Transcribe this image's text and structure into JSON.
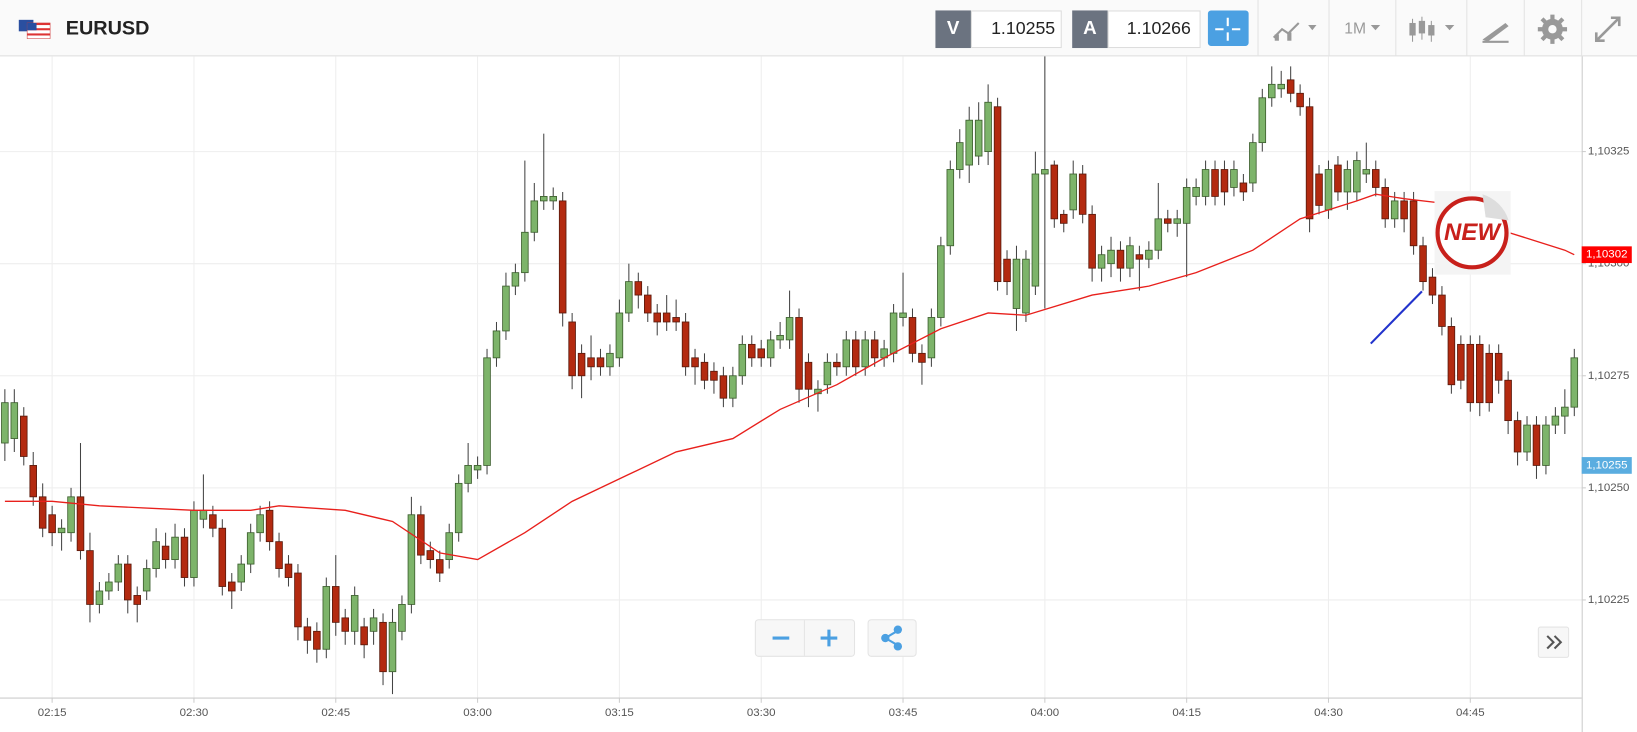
{
  "toolbar": {
    "symbol": "EURUSD",
    "bid_label": "V",
    "bid": "1.10255",
    "ask_label": "A",
    "ask": "1.10266",
    "timeframe": "1M"
  },
  "sticker": {
    "label": "NEW"
  },
  "chart_data": {
    "type": "candlestick",
    "up_color": "#7db46a",
    "down_color": "#b32a10",
    "grid": true,
    "x": [
      "02:10",
      "02:11",
      "02:12",
      "02:13",
      "02:14",
      "02:15",
      "02:16",
      "02:17",
      "02:18",
      "02:19",
      "02:20",
      "02:21",
      "02:22",
      "02:23",
      "02:24",
      "02:25",
      "02:26",
      "02:27",
      "02:28",
      "02:29",
      "02:30",
      "02:31",
      "02:32",
      "02:33",
      "02:34",
      "02:35",
      "02:36",
      "02:37",
      "02:38",
      "02:39",
      "02:40",
      "02:41",
      "02:42",
      "02:43",
      "02:44",
      "02:45",
      "02:46",
      "02:47",
      "02:48",
      "02:49",
      "02:50",
      "02:51",
      "02:52",
      "02:53",
      "02:54",
      "02:55",
      "02:56",
      "02:57",
      "02:58",
      "02:59",
      "03:00",
      "03:01",
      "03:02",
      "03:03",
      "03:04",
      "03:05",
      "03:06",
      "03:07",
      "03:08",
      "03:09",
      "03:10",
      "03:11",
      "03:12",
      "03:13",
      "03:14",
      "03:15",
      "03:16",
      "03:17",
      "03:18",
      "03:19",
      "03:20",
      "03:21",
      "03:22",
      "03:23",
      "03:24",
      "03:25",
      "03:26",
      "03:27",
      "03:28",
      "03:29",
      "03:30",
      "03:31",
      "03:32",
      "03:33",
      "03:34",
      "03:35",
      "03:36",
      "03:37",
      "03:38",
      "03:39",
      "03:40",
      "03:41",
      "03:42",
      "03:43",
      "03:44",
      "03:45",
      "03:46",
      "03:47",
      "03:48",
      "03:49",
      "03:50",
      "03:51",
      "03:52",
      "03:53",
      "03:54",
      "03:55",
      "03:56",
      "03:57",
      "03:58",
      "03:59",
      "04:00",
      "04:01",
      "04:02",
      "04:03",
      "04:04",
      "04:05",
      "04:06",
      "04:07",
      "04:08",
      "04:09",
      "04:10",
      "04:11",
      "04:12",
      "04:13",
      "04:14",
      "04:15",
      "04:16",
      "04:17",
      "04:18",
      "04:19",
      "04:20",
      "04:21",
      "04:22",
      "04:23",
      "04:24",
      "04:25",
      "04:26",
      "04:27",
      "04:28",
      "04:29",
      "04:30",
      "04:31",
      "04:32",
      "04:33",
      "04:34",
      "04:35",
      "04:36",
      "04:37",
      "04:38",
      "04:39",
      "04:40",
      "04:41",
      "04:42",
      "04:43",
      "04:44",
      "04:45",
      "04:46",
      "04:47",
      "04:48",
      "04:49",
      "04:50",
      "04:51",
      "04:52",
      "04:53",
      "04:54",
      "04:55",
      "04:56"
    ],
    "open": [
      1.1026,
      1.10261,
      1.10266,
      1.10255,
      1.10248,
      1.10244,
      1.1024,
      1.1024,
      1.10248,
      1.10236,
      1.10224,
      1.10227,
      1.10229,
      1.10233,
      1.10226,
      1.10227,
      1.10232,
      1.10237,
      1.10234,
      1.10239,
      1.1023,
      1.10243,
      1.10244,
      1.10241,
      1.10229,
      1.10229,
      1.10233,
      1.1024,
      1.10245,
      1.10238,
      1.10233,
      1.10231,
      1.10219,
      1.10218,
      1.10214,
      1.10228,
      1.10221,
      1.10218,
      1.10219,
      1.10218,
      1.1022,
      1.10209,
      1.10218,
      1.10224,
      1.10244,
      1.10236,
      1.10234,
      1.10234,
      1.1024,
      1.10251,
      1.10254,
      1.10255,
      1.10279,
      1.10285,
      1.10295,
      1.10298,
      1.10307,
      1.10314,
      1.10314,
      1.10314,
      1.10287,
      1.1028,
      1.10279,
      1.10279,
      1.10277,
      1.10279,
      1.10289,
      1.10296,
      1.10293,
      1.10289,
      1.10289,
      1.10288,
      1.10287,
      1.10279,
      1.10278,
      1.10276,
      1.10275,
      1.1027,
      1.10275,
      1.10282,
      1.10281,
      1.10279,
      1.10283,
      1.10283,
      1.10288,
      1.10278,
      1.10271,
      1.10273,
      1.10278,
      1.10277,
      1.10283,
      1.10277,
      1.10283,
      1.10279,
      1.1028,
      1.10288,
      1.10288,
      1.1028,
      1.10279,
      1.10288,
      1.10304,
      1.10321,
      1.10322,
      1.10324,
      1.10325,
      1.10335,
      1.10301,
      1.1029,
      1.10289,
      1.10295,
      1.1032,
      1.10322,
      1.10311,
      1.10312,
      1.1032,
      1.10311,
      1.10299,
      1.103,
      1.10303,
      1.10299,
      1.10302,
      1.10301,
      1.10303,
      1.1031,
      1.10309,
      1.10309,
      1.10315,
      1.10315,
      1.10321,
      1.10321,
      1.10317,
      1.10318,
      1.10318,
      1.10327,
      1.10337,
      1.10339,
      1.10341,
      1.10338,
      1.10335,
      1.1032,
      1.10312,
      1.10322,
      1.10316,
      1.10316,
      1.1032,
      1.10321,
      1.10317,
      1.1031,
      1.10314,
      1.10314,
      1.10304,
      1.10297,
      1.10293,
      1.10286,
      1.10282,
      1.10282,
      1.10282,
      1.1028,
      1.1028,
      1.10274,
      1.10265,
      1.10258,
      1.10264,
      1.10255,
      1.10264,
      1.10266,
      1.10268
    ],
    "high": [
      1.10272,
      1.10272,
      1.10268,
      1.10258,
      1.10251,
      1.10246,
      1.10243,
      1.1025,
      1.1026,
      1.1024,
      1.10229,
      1.10231,
      1.10235,
      1.10235,
      1.10228,
      1.10234,
      1.10241,
      1.1024,
      1.10242,
      1.10241,
      1.10247,
      1.10253,
      1.10246,
      1.10243,
      1.10231,
      1.10235,
      1.10242,
      1.10246,
      1.10247,
      1.1024,
      1.10235,
      1.10233,
      1.10221,
      1.1022,
      1.1023,
      1.10235,
      1.10223,
      1.10228,
      1.10221,
      1.10223,
      1.10222,
      1.10223,
      1.10226,
      1.10248,
      1.10246,
      1.10238,
      1.10236,
      1.10242,
      1.10253,
      1.1026,
      1.10257,
      1.10281,
      1.10287,
      1.10298,
      1.103,
      1.10323,
      1.10318,
      1.10329,
      1.10317,
      1.10316,
      1.10289,
      1.10282,
      1.10284,
      1.10281,
      1.10282,
      1.10292,
      1.103,
      1.10298,
      1.10295,
      1.10291,
      1.10293,
      1.10292,
      1.10289,
      1.10281,
      1.1028,
      1.10278,
      1.10277,
      1.10277,
      1.10284,
      1.10284,
      1.10283,
      1.10285,
      1.10287,
      1.10294,
      1.1029,
      1.1028,
      1.10274,
      1.1028,
      1.1028,
      1.10285,
      1.10285,
      1.10285,
      1.10285,
      1.10283,
      1.10291,
      1.10298,
      1.1029,
      1.10282,
      1.1029,
      1.10306,
      1.10323,
      1.1033,
      1.10335,
      1.10336,
      1.1034,
      1.10337,
      1.10303,
      1.10304,
      1.10303,
      1.10325,
      1.10348,
      1.10323,
      1.10312,
      1.10323,
      1.10322,
      1.10313,
      1.10304,
      1.10306,
      1.10305,
      1.10306,
      1.10304,
      1.10305,
      1.10318,
      1.10312,
      1.10312,
      1.10319,
      1.10319,
      1.10323,
      1.10323,
      1.10323,
      1.10323,
      1.1032,
      1.10329,
      1.10339,
      1.10344,
      1.10343,
      1.10344,
      1.1034,
      1.10337,
      1.10322,
      1.10323,
      1.10324,
      1.10323,
      1.10325,
      1.10327,
      1.10323,
      1.10319,
      1.10316,
      1.10316,
      1.10316,
      1.10306,
      1.10299,
      1.10295,
      1.10288,
      1.10284,
      1.10284,
      1.10284,
      1.10282,
      1.10282,
      1.10276,
      1.10267,
      1.10266,
      1.10266,
      1.10266,
      1.10268,
      1.10272,
      1.10281
    ],
    "low": [
      1.10256,
      1.10258,
      1.10255,
      1.10246,
      1.10239,
      1.10237,
      1.10236,
      1.10238,
      1.10234,
      1.1022,
      1.10222,
      1.10225,
      1.10227,
      1.10222,
      1.1022,
      1.10225,
      1.1023,
      1.10232,
      1.10232,
      1.10228,
      1.10228,
      1.10241,
      1.10239,
      1.10226,
      1.10223,
      1.10227,
      1.10231,
      1.10238,
      1.10236,
      1.1023,
      1.10228,
      1.10216,
      1.10213,
      1.10211,
      1.10212,
      1.10217,
      1.10215,
      1.10215,
      1.10212,
      1.10215,
      1.10206,
      1.10204,
      1.10216,
      1.10222,
      1.10233,
      1.10232,
      1.10229,
      1.10232,
      1.10238,
      1.10249,
      1.10252,
      1.10253,
      1.10277,
      1.10283,
      1.10293,
      1.10296,
      1.10305,
      1.10312,
      1.10312,
      1.10286,
      1.10272,
      1.1027,
      1.10274,
      1.10275,
      1.10275,
      1.10277,
      1.10287,
      1.1029,
      1.10287,
      1.10284,
      1.10285,
      1.10285,
      1.10275,
      1.10273,
      1.10272,
      1.10271,
      1.10268,
      1.10268,
      1.10273,
      1.10277,
      1.10277,
      1.10277,
      1.10281,
      1.10281,
      1.10269,
      1.10268,
      1.10267,
      1.10271,
      1.10275,
      1.10275,
      1.10275,
      1.10275,
      1.10277,
      1.10277,
      1.10278,
      1.10286,
      1.10278,
      1.10273,
      1.10277,
      1.10286,
      1.10302,
      1.10319,
      1.10318,
      1.10322,
      1.10322,
      1.10294,
      1.10293,
      1.10285,
      1.10287,
      1.10293,
      1.1029,
      1.10308,
      1.10307,
      1.1031,
      1.10309,
      1.10296,
      1.10296,
      1.10297,
      1.10296,
      1.10297,
      1.10294,
      1.10299,
      1.10301,
      1.10307,
      1.10306,
      1.10297,
      1.10313,
      1.10313,
      1.10313,
      1.10313,
      1.10315,
      1.10314,
      1.10316,
      1.10325,
      1.10335,
      1.10337,
      1.10336,
      1.10333,
      1.10307,
      1.10311,
      1.1031,
      1.10314,
      1.10312,
      1.10314,
      1.10318,
      1.10315,
      1.10308,
      1.10308,
      1.10307,
      1.10302,
      1.10294,
      1.10291,
      1.10284,
      1.10271,
      1.10272,
      1.10267,
      1.10266,
      1.10267,
      1.10271,
      1.10262,
      1.10255,
      1.10256,
      1.10252,
      1.10253,
      1.10262,
      1.10262,
      1.10266
    ],
    "close": [
      1.10269,
      1.10269,
      1.10257,
      1.10248,
      1.10241,
      1.1024,
      1.10241,
      1.10248,
      1.10236,
      1.10224,
      1.10227,
      1.10229,
      1.10233,
      1.10225,
      1.10224,
      1.10232,
      1.10238,
      1.10234,
      1.10239,
      1.1023,
      1.10245,
      1.10245,
      1.10241,
      1.10228,
      1.10227,
      1.10233,
      1.1024,
      1.10244,
      1.10238,
      1.10232,
      1.1023,
      1.10219,
      1.10216,
      1.10214,
      1.10228,
      1.1022,
      1.10218,
      1.10226,
      1.10215,
      1.10221,
      1.10209,
      1.1022,
      1.10224,
      1.10244,
      1.10235,
      1.10234,
      1.10231,
      1.1024,
      1.10251,
      1.10255,
      1.10255,
      1.10279,
      1.10285,
      1.10295,
      1.10298,
      1.10307,
      1.10314,
      1.10315,
      1.10315,
      1.10289,
      1.10275,
      1.10275,
      1.10277,
      1.10277,
      1.1028,
      1.10289,
      1.10296,
      1.10293,
      1.10289,
      1.10287,
      1.10287,
      1.10287,
      1.10277,
      1.10277,
      1.10274,
      1.10274,
      1.1027,
      1.10275,
      1.10282,
      1.10279,
      1.10279,
      1.10283,
      1.10284,
      1.10288,
      1.10272,
      1.10272,
      1.10272,
      1.10278,
      1.10277,
      1.10283,
      1.10277,
      1.10283,
      1.10279,
      1.10281,
      1.10289,
      1.10289,
      1.1028,
      1.10278,
      1.10288,
      1.10304,
      1.10321,
      1.10327,
      1.10332,
      1.10332,
      1.10336,
      1.10296,
      1.10296,
      1.10301,
      1.10301,
      1.1032,
      1.10321,
      1.1031,
      1.10309,
      1.1032,
      1.10311,
      1.10299,
      1.10302,
      1.10303,
      1.10299,
      1.10304,
      1.10301,
      1.10303,
      1.1031,
      1.10309,
      1.1031,
      1.10317,
      1.10317,
      1.10321,
      1.10315,
      1.10316,
      1.10321,
      1.10316,
      1.10327,
      1.10337,
      1.1034,
      1.1034,
      1.10338,
      1.10335,
      1.1031,
      1.10313,
      1.10321,
      1.10316,
      1.10321,
      1.10323,
      1.10321,
      1.10317,
      1.1031,
      1.10314,
      1.1031,
      1.10304,
      1.10296,
      1.10293,
      1.10286,
      1.10273,
      1.10274,
      1.10269,
      1.10269,
      1.10269,
      1.10274,
      1.10265,
      1.10258,
      1.10264,
      1.10255,
      1.10264,
      1.10266,
      1.10268,
      1.10279
    ],
    "moving_average": {
      "color": "#e8201c",
      "x": [
        "02:10",
        "02:15",
        "02:20",
        "02:30",
        "02:36",
        "02:39",
        "02:46",
        "02:51",
        "02:56",
        "03:00",
        "03:05",
        "03:10",
        "03:16",
        "03:21",
        "03:27",
        "03:32",
        "03:38",
        "03:43",
        "03:49",
        "03:54",
        "03:58",
        "04:05",
        "04:11",
        "04:16",
        "04:22",
        "04:27",
        "04:33",
        "04:35",
        "04:38",
        "04:42",
        "04:49",
        "04:55",
        "04:56"
      ],
      "values": [
        1.10247,
        1.10247,
        1.10246,
        1.10245,
        1.10245,
        1.10246,
        1.10245,
        1.102425,
        1.102355,
        1.10234,
        1.1024,
        1.10247,
        1.10253,
        1.10258,
        1.10261,
        1.102675,
        1.10273,
        1.10279,
        1.102855,
        1.10289,
        1.102885,
        1.10293,
        1.10295,
        1.10298,
        1.10303,
        1.1031,
        1.10314,
        1.103155,
        1.103145,
        1.103135,
        1.10307,
        1.10303,
        1.10302
      ]
    },
    "xlim": [
      "02:09",
      "04:57"
    ],
    "xticks": [
      "02:15",
      "02:30",
      "02:45",
      "03:00",
      "03:15",
      "03:30",
      "03:45",
      "04:00",
      "04:15",
      "04:30",
      "04:45"
    ],
    "ylim": [
      1.10203,
      1.10346
    ],
    "yticks": [
      {
        "value": 1.10225,
        "label": "1,10225"
      },
      {
        "value": 1.1025,
        "label": "1,10250"
      },
      {
        "value": 1.10275,
        "label": "1,10275"
      },
      {
        "value": 1.103,
        "label": "1,10300"
      },
      {
        "value": 1.10325,
        "label": "1,10325"
      }
    ],
    "price_tags": [
      {
        "value": 1.10302,
        "label": "1,10302",
        "color": "#ff0000"
      },
      {
        "value": 1.10255,
        "label": "1,10255",
        "color": "#5aade0"
      }
    ]
  }
}
